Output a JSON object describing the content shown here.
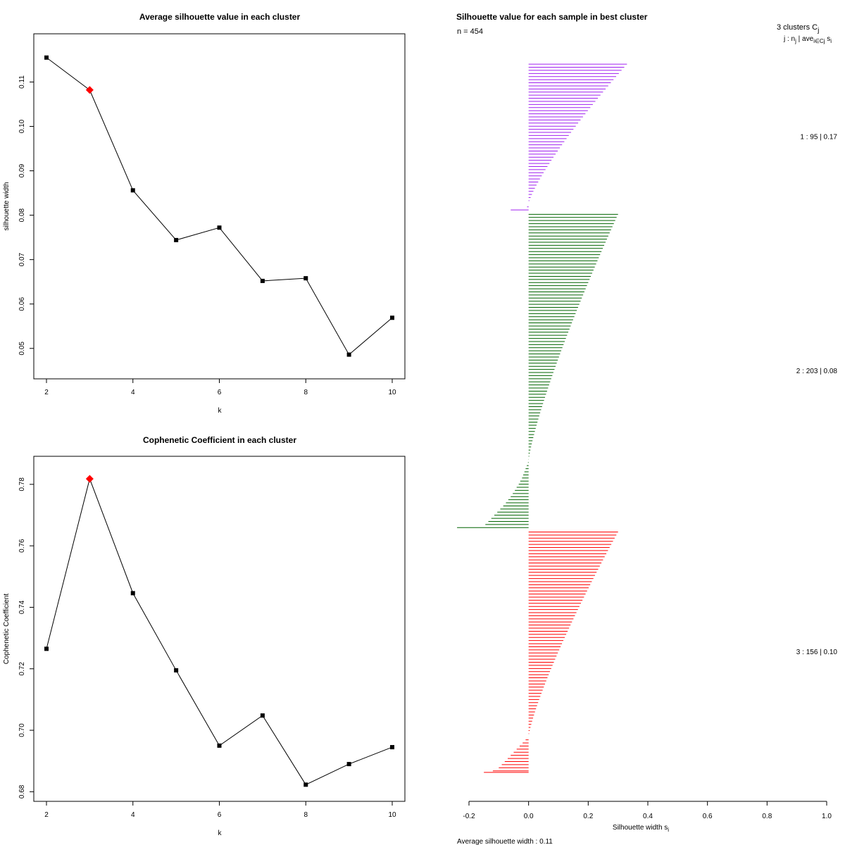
{
  "chart_data": [
    {
      "type": "line",
      "title": "Average silhouette value in each cluster",
      "xlabel": "k",
      "ylabel": "silhouette width",
      "x": [
        2,
        3,
        4,
        5,
        6,
        7,
        8,
        9,
        10
      ],
      "values": [
        0.1155,
        0.1082,
        0.0856,
        0.0744,
        0.0772,
        0.0652,
        0.0658,
        0.0486,
        0.0569
      ],
      "highlight_index": 1,
      "highlight_color": "#ff0000",
      "xlim": [
        2,
        10
      ],
      "ylim": [
        0.046,
        0.118
      ],
      "xticks": [
        "2",
        "4",
        "6",
        "8",
        "10"
      ],
      "yticks": [
        "0.05",
        "0.06",
        "0.07",
        "0.08",
        "0.09",
        "0.10",
        "0.11"
      ]
    },
    {
      "type": "line",
      "title": "Cophenetic Coefficient in each cluster",
      "xlabel": "k",
      "ylabel": "Cophenetic Coefficient",
      "x": [
        2,
        3,
        4,
        5,
        6,
        7,
        8,
        9,
        10
      ],
      "values": [
        0.7265,
        0.7818,
        0.7446,
        0.7195,
        0.695,
        0.7048,
        0.6823,
        0.689,
        0.6945
      ],
      "highlight_index": 1,
      "highlight_color": "#ff0000",
      "xlim": [
        2,
        10
      ],
      "ylim": [
        0.681,
        0.785
      ],
      "xticks": [
        "2",
        "4",
        "6",
        "8",
        "10"
      ],
      "yticks": [
        "0.68",
        "0.70",
        "0.72",
        "0.74",
        "0.76",
        "0.78"
      ]
    },
    {
      "type": "bar",
      "orientation": "horizontal",
      "title": "Silhouette value for each sample in best cluster",
      "n_label": "n = 454",
      "xlabel": "Silhouette width s",
      "xlabel_sub": "i",
      "xlim": [
        -0.2,
        1.0
      ],
      "xticks": [
        "-0.2",
        "0.0",
        "0.2",
        "0.4",
        "0.6",
        "0.8",
        "1.0"
      ],
      "legend_header": "3  clusters  C",
      "legend_header_sub": "j",
      "legend_subheader": "j :  n",
      "legend_subheader_sub": "j",
      "legend_subheader_tail": " | ave",
      "legend_subheader_tail_sub": "i∈Cj",
      "legend_subheader_end": " s",
      "legend_subheader_end_sub": "i",
      "footer": "Average silhouette width :  0.11",
      "clusters": [
        {
          "label": "1 :  95  |  0.17",
          "n": 95,
          "average": 0.17,
          "color": "#a020f0",
          "max": 0.33,
          "min_positive": 0.0,
          "negatives": [
            -0.003,
            -0.005,
            -0.01,
            -0.06
          ]
        },
        {
          "label": "2 :  203  |  0.08",
          "n": 203,
          "average": 0.08,
          "color": "#006400",
          "max": 0.3,
          "min_positive": 0.0,
          "negatives": [
            -0.002,
            -0.004,
            -0.006,
            -0.008,
            -0.01,
            -0.012,
            -0.014,
            -0.016,
            -0.018,
            -0.02,
            -0.022,
            -0.025,
            -0.028,
            -0.03,
            -0.033,
            -0.036,
            -0.04,
            -0.043,
            -0.046,
            -0.05,
            -0.053,
            -0.056,
            -0.06,
            -0.064,
            -0.068,
            -0.072,
            -0.076,
            -0.08,
            -0.085,
            -0.09,
            -0.095,
            -0.1,
            -0.105,
            -0.11,
            -0.115,
            -0.12,
            -0.125,
            -0.13,
            -0.135,
            -0.14,
            -0.145,
            -0.15,
            -0.24
          ]
        },
        {
          "label": "3 :  156  |  0.10",
          "n": 156,
          "average": 0.1,
          "color": "#ff0000",
          "max": 0.3,
          "min_positive": 0.0,
          "negatives": [
            -0.005,
            -0.01,
            -0.015,
            -0.02,
            -0.025,
            -0.03,
            -0.035,
            -0.04,
            -0.045,
            -0.05,
            -0.055,
            -0.06,
            -0.065,
            -0.07,
            -0.075,
            -0.08,
            -0.085,
            -0.09,
            -0.095,
            -0.1,
            -0.11,
            -0.12,
            -0.15
          ]
        }
      ]
    }
  ]
}
